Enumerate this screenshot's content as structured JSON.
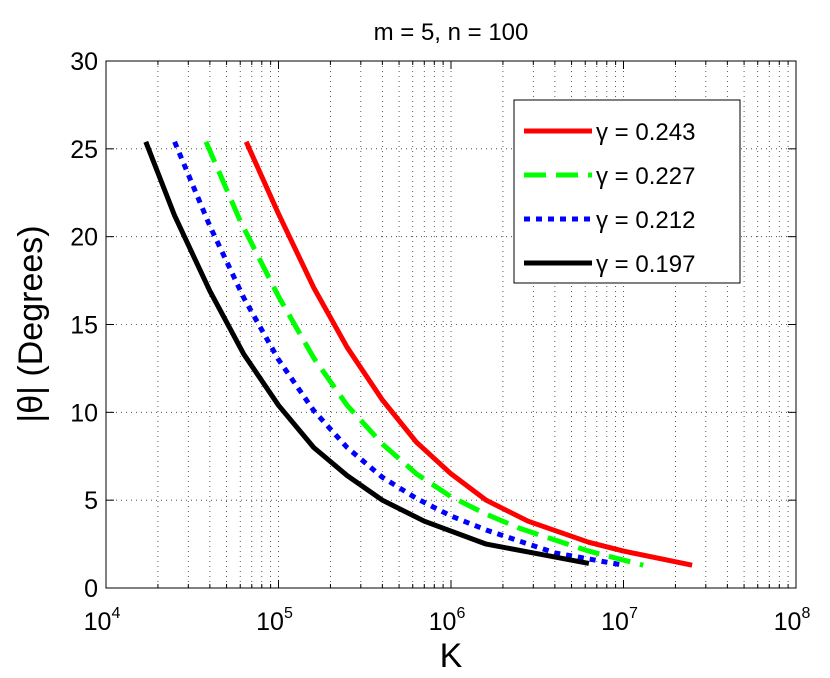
{
  "chart_data": {
    "type": "line",
    "title": "m = 5, n = 100",
    "xlabel": "K",
    "ylabel": "|θ| (Degrees)",
    "xscale": "log",
    "xlim": [
      10000,
      100000000
    ],
    "ylim": [
      0,
      30
    ],
    "grid": "on (dotted, log minor)",
    "legend_location": "top-right",
    "x_ticks": [
      {
        "base": "10",
        "exp": "4",
        "value": 10000
      },
      {
        "base": "10",
        "exp": "5",
        "value": 100000
      },
      {
        "base": "10",
        "exp": "6",
        "value": 1000000
      },
      {
        "base": "10",
        "exp": "7",
        "value": 10000000
      },
      {
        "base": "10",
        "exp": "8",
        "value": 100000000
      }
    ],
    "y_ticks": [
      {
        "label": "0",
        "value": 0
      },
      {
        "label": "5",
        "value": 5
      },
      {
        "label": "10",
        "value": 10
      },
      {
        "label": "15",
        "value": 15
      },
      {
        "label": "20",
        "value": 20
      },
      {
        "label": "25",
        "value": 25
      },
      {
        "label": "30",
        "value": 30
      }
    ],
    "series": [
      {
        "name": "γ = 0.243",
        "color": "#ff0000",
        "dash": "solid",
        "x": [
          65000,
          100000,
          160000,
          250000,
          400000,
          630000,
          1000000,
          1600000,
          2800000,
          6300000,
          10000000,
          25000000
        ],
        "y": [
          25.4,
          21.3,
          17.1,
          13.7,
          10.7,
          8.3,
          6.5,
          5.0,
          3.8,
          2.6,
          2.1,
          1.3
        ]
      },
      {
        "name": "γ = 0.227",
        "color": "#00ff00",
        "dash": "dashed",
        "x": [
          38000,
          60000,
          100000,
          160000,
          250000,
          400000,
          630000,
          1000000,
          1600000,
          2500000,
          6300000,
          13000000
        ],
        "y": [
          25.4,
          20.9,
          16.6,
          13.1,
          10.4,
          8.2,
          6.5,
          5.2,
          4.2,
          3.4,
          2.1,
          1.3
        ]
      },
      {
        "name": "γ = 0.212",
        "color": "#0000ff",
        "dash": "dotted",
        "x": [
          25000,
          40000,
          63000,
          100000,
          160000,
          250000,
          400000,
          630000,
          1000000,
          1600000,
          4000000,
          10000000
        ],
        "y": [
          25.4,
          20.6,
          16.5,
          13.0,
          10.1,
          8.0,
          6.3,
          5.1,
          4.1,
          3.3,
          2.0,
          1.3
        ]
      },
      {
        "name": "γ = 0.197",
        "color": "#000000",
        "dash": "solid",
        "x": [
          17000,
          25000,
          40000,
          63000,
          100000,
          160000,
          250000,
          400000,
          700000,
          1600000,
          3000000,
          6300000
        ],
        "y": [
          25.4,
          21.2,
          16.9,
          13.3,
          10.4,
          8.0,
          6.4,
          5.0,
          3.8,
          2.5,
          2.0,
          1.4
        ]
      }
    ]
  }
}
